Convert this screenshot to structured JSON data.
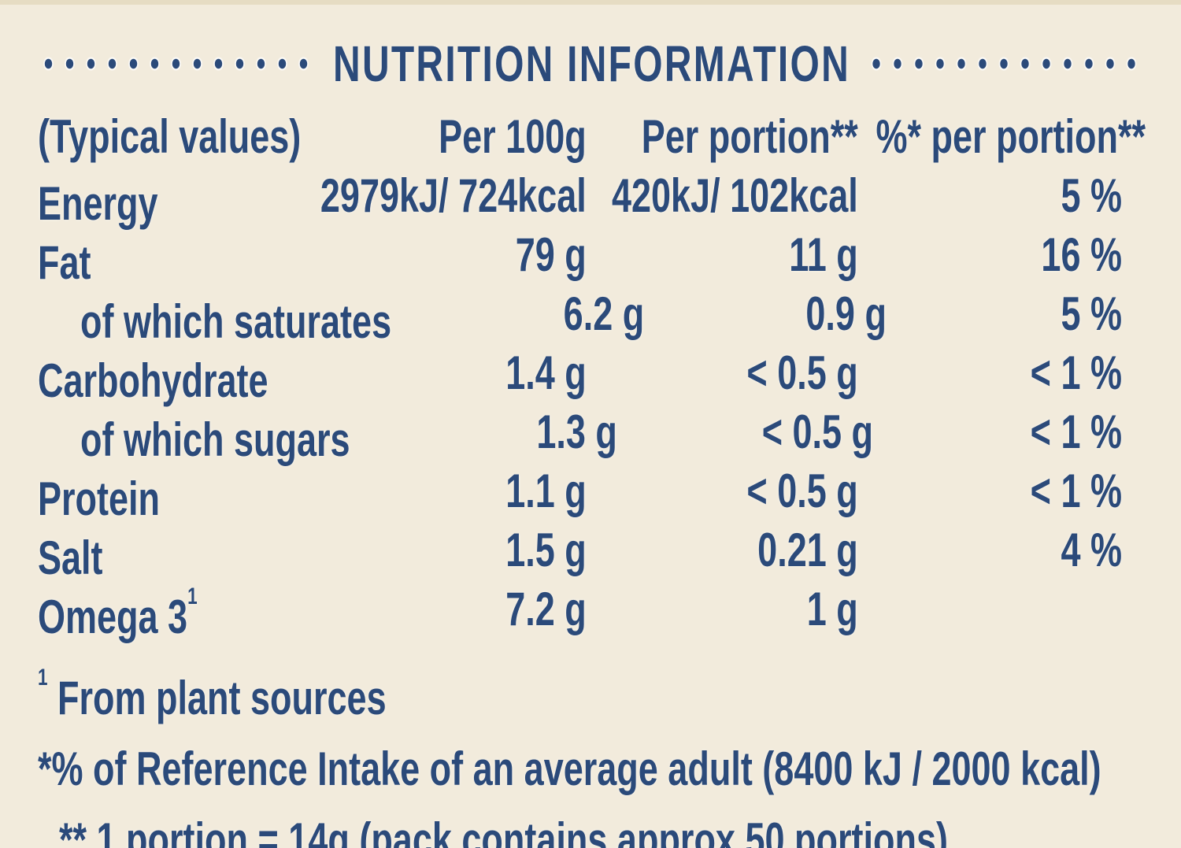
{
  "colors": {
    "background": "#f2ebdc",
    "top_strip": "#e6dcc3",
    "text_navy": "#2b4a7a"
  },
  "title": "NUTRITION INFORMATION",
  "decor": {
    "left_dotted_line": "dotted-leader",
    "right_dotted_line": "dotted-leader"
  },
  "table": {
    "header": {
      "label": "(Typical values)",
      "per100g": "Per 100g",
      "per_portion": "Per portion**",
      "percent": "%* per portion**"
    },
    "rows": [
      {
        "label": "Energy",
        "superscript": "",
        "per100g": "2979kJ/ 724kcal",
        "per_portion": "420kJ/ 102kcal",
        "percent": "5 %",
        "indent": false
      },
      {
        "label": "Fat",
        "superscript": "",
        "per100g": "79 g",
        "per_portion": "11 g",
        "percent": "16 %",
        "indent": false
      },
      {
        "label": "of which saturates",
        "superscript": "",
        "per100g": "6.2 g",
        "per_portion": "0.9 g",
        "percent": "5 %",
        "indent": true
      },
      {
        "label": "Carbohydrate",
        "superscript": "",
        "per100g": "1.4 g",
        "per_portion": "< 0.5 g",
        "percent": "< 1 %",
        "indent": false
      },
      {
        "label": "of which sugars",
        "superscript": "",
        "per100g": "1.3 g",
        "per_portion": "< 0.5 g",
        "percent": "< 1 %",
        "indent": true
      },
      {
        "label": "Protein",
        "superscript": "",
        "per100g": "1.1 g",
        "per_portion": "< 0.5 g",
        "percent": "< 1 %",
        "indent": false
      },
      {
        "label": "Salt",
        "superscript": "",
        "per100g": "1.5 g",
        "per_portion": "0.21 g",
        "percent": "4 %",
        "indent": false
      },
      {
        "label": "Omega 3",
        "superscript": "1",
        "per100g": "7.2 g",
        "per_portion": "1 g",
        "percent": "",
        "indent": false
      }
    ]
  },
  "footnotes": [
    {
      "superscript": "1",
      "text": " From plant sources",
      "indent": false
    },
    {
      "superscript": "",
      "text": "*% of Reference Intake of an average adult (8400 kJ / 2000 kcal)",
      "indent": false
    },
    {
      "superscript": "",
      "text": "** 1 portion = 14g (pack contains approx 50 portions)",
      "indent": true
    }
  ]
}
